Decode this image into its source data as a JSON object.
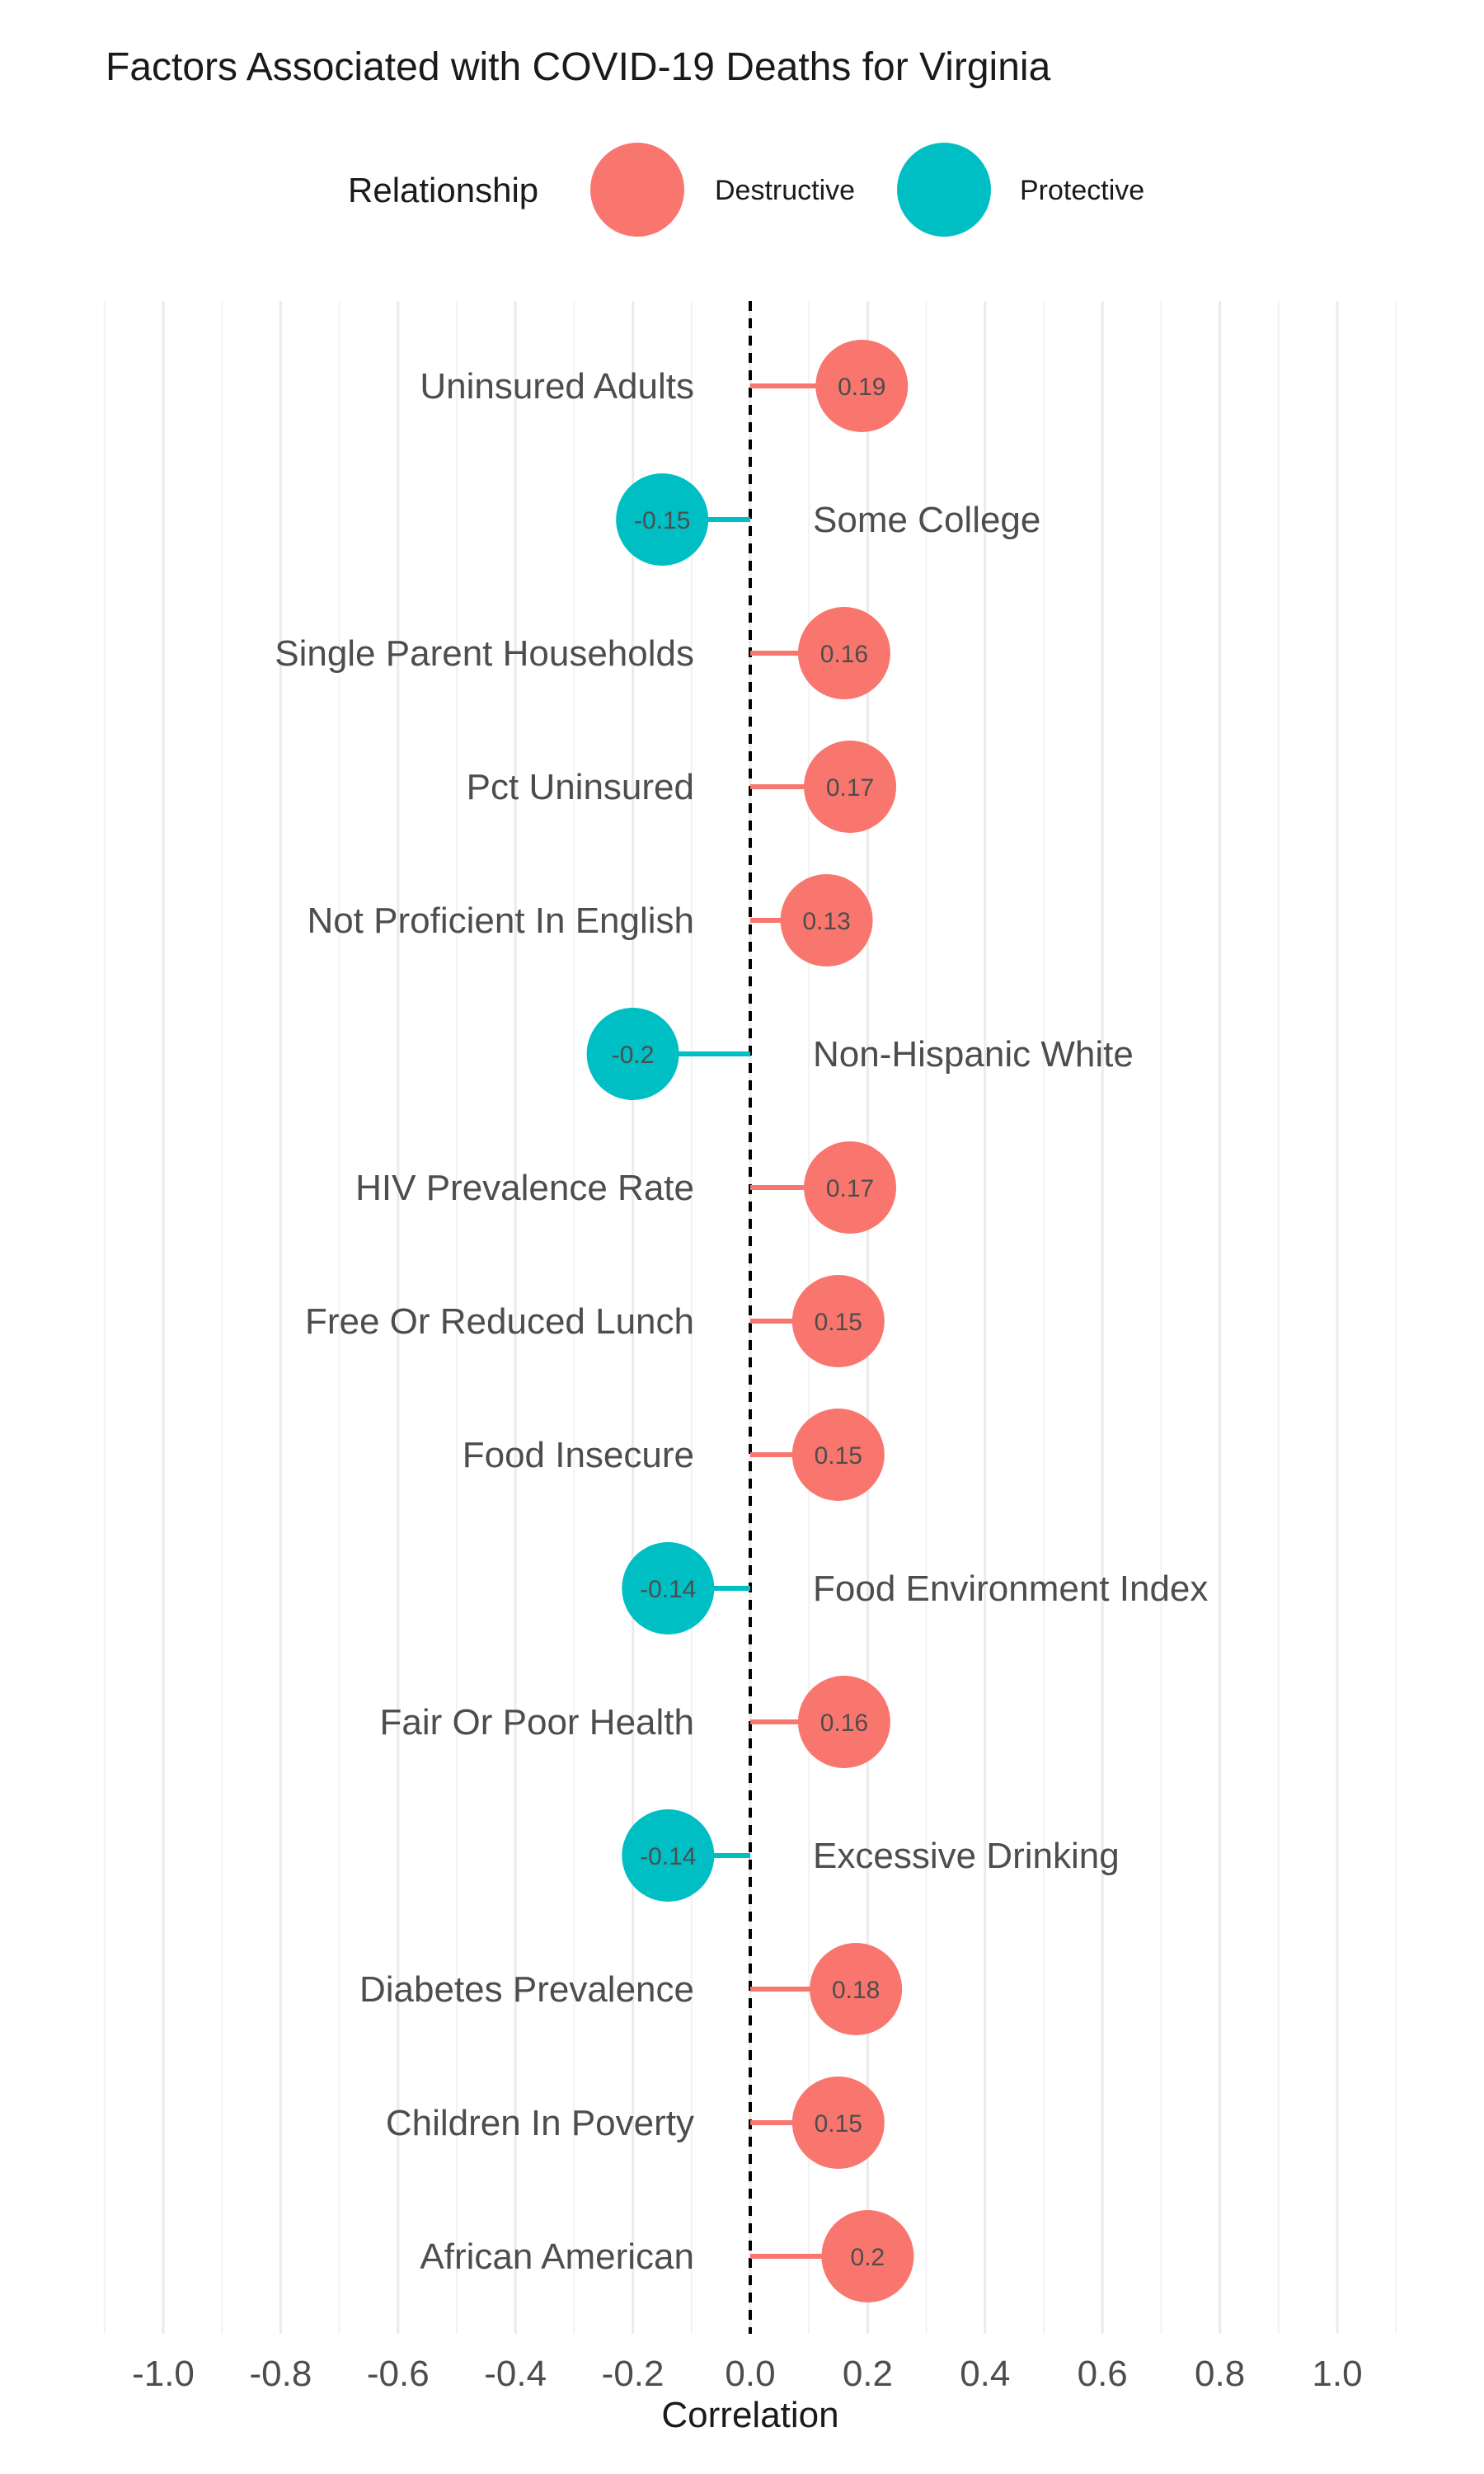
{
  "chart_data": {
    "type": "lollipop",
    "title": "Factors Associated with COVID-19 Deaths for Virginia",
    "xlabel": "Correlation",
    "ylabel": "",
    "xlim": [
      -1.1,
      1.1
    ],
    "x_ticks": [
      "-1.0",
      "-0.8",
      "-0.6",
      "-0.4",
      "-0.2",
      "0.0",
      "0.2",
      "0.4",
      "0.6",
      "0.8",
      "1.0"
    ],
    "grid": "vertical",
    "reference_line": {
      "x": 0,
      "style": "dashed"
    },
    "legend": {
      "title": "Relationship",
      "position": "top",
      "entries": [
        {
          "label": "Destructive",
          "color": "#F8766D"
        },
        {
          "label": "Protective",
          "color": "#00BFC4"
        }
      ]
    },
    "categories": [
      "Uninsured Adults",
      "Some College",
      "Single Parent Households",
      "Pct Uninsured",
      "Not Proficient In English",
      "Non-Hispanic White",
      "HIV Prevalence Rate",
      "Free Or Reduced Lunch",
      "Food Insecure",
      "Food Environment Index",
      "Fair Or Poor Health",
      "Excessive Drinking",
      "Diabetes Prevalence",
      "Children In Poverty",
      "African American"
    ],
    "values": [
      0.19,
      -0.15,
      0.16,
      0.17,
      0.13,
      -0.2,
      0.17,
      0.15,
      0.15,
      -0.14,
      0.16,
      -0.14,
      0.18,
      0.15,
      0.2
    ],
    "value_labels": [
      "0.19",
      "-0.15",
      "0.16",
      "0.17",
      "0.13",
      "-0.2",
      "0.17",
      "0.15",
      "0.15",
      "-0.14",
      "0.16",
      "-0.14",
      "0.18",
      "0.15",
      "0.2"
    ],
    "relationship": [
      "Destructive",
      "Protective",
      "Destructive",
      "Destructive",
      "Destructive",
      "Protective",
      "Destructive",
      "Destructive",
      "Destructive",
      "Protective",
      "Destructive",
      "Protective",
      "Destructive",
      "Destructive",
      "Destructive"
    ]
  }
}
